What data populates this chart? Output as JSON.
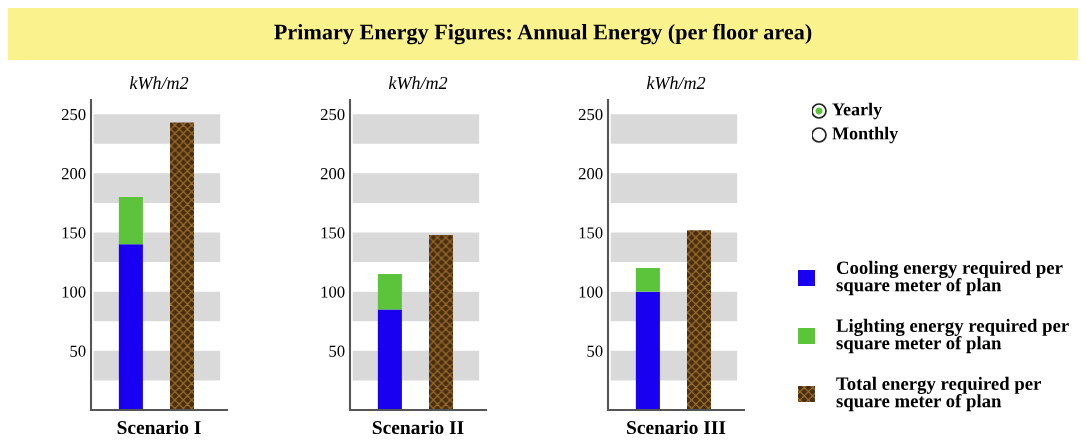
{
  "chart_data": [
    {
      "type": "other",
      "title": "Primary Energy Figures: Annual Energy (per floor area)"
    },
    {
      "type": "bar",
      "ylabel": "kWh/m2",
      "xlabel": "Scenario I",
      "categories": [
        null,
        null
      ],
      "stacked": true,
      "ylim": [
        0,
        262
      ],
      "yticks": [
        50,
        100,
        150,
        200,
        250
      ],
      "grid": false,
      "bands": [
        {
          "axis": "y",
          "from": 25,
          "to": 50,
          "color": "#d9d9d9"
        },
        {
          "axis": "y",
          "from": 75,
          "to": 100,
          "color": "#d9d9d9"
        },
        {
          "axis": "y",
          "from": 125,
          "to": 150,
          "color": "#d9d9d9"
        },
        {
          "axis": "y",
          "from": 175,
          "to": 200,
          "color": "#d9d9d9"
        },
        {
          "axis": "y",
          "from": 225,
          "to": 250,
          "color": "#d9d9d9"
        }
      ],
      "series": [
        {
          "color": "#1a00f0",
          "values": [
            140,
            null
          ]
        },
        {
          "color": "#5cc43a",
          "values": [
            40,
            null
          ]
        },
        {
          "color": "#4a2e12",
          "values": [
            null,
            243
          ]
        }
      ]
    },
    {
      "type": "bar",
      "ylabel": "kWh/m2",
      "xlabel": "Scenario II",
      "categories": [
        null,
        null
      ],
      "stacked": true,
      "ylim": [
        0,
        262
      ],
      "yticks": [
        50,
        100,
        150,
        200,
        250
      ],
      "grid": false,
      "bands": [
        {
          "axis": "y",
          "from": 25,
          "to": 50,
          "color": "#d9d9d9"
        },
        {
          "axis": "y",
          "from": 75,
          "to": 100,
          "color": "#d9d9d9"
        },
        {
          "axis": "y",
          "from": 125,
          "to": 150,
          "color": "#d9d9d9"
        },
        {
          "axis": "y",
          "from": 175,
          "to": 200,
          "color": "#d9d9d9"
        },
        {
          "axis": "y",
          "from": 225,
          "to": 250,
          "color": "#d9d9d9"
        }
      ],
      "series": [
        {
          "color": "#1a00f0",
          "values": [
            85,
            null
          ]
        },
        {
          "color": "#5cc43a",
          "values": [
            30,
            null
          ]
        },
        {
          "color": "#4a2e12",
          "values": [
            null,
            148
          ]
        }
      ]
    },
    {
      "type": "bar",
      "ylabel": "kWh/m2",
      "xlabel": "Scenario III",
      "categories": [
        null,
        null
      ],
      "stacked": true,
      "ylim": [
        0,
        262
      ],
      "yticks": [
        50,
        100,
        150,
        200,
        250
      ],
      "grid": false,
      "legend": "right",
      "bands": [
        {
          "axis": "y",
          "from": 25,
          "to": 50,
          "color": "#d9d9d9"
        },
        {
          "axis": "y",
          "from": 75,
          "to": 100,
          "color": "#d9d9d9"
        },
        {
          "axis": "y",
          "from": 125,
          "to": 150,
          "color": "#d9d9d9"
        },
        {
          "axis": "y",
          "from": 175,
          "to": 200,
          "color": "#d9d9d9"
        },
        {
          "axis": "y",
          "from": 225,
          "to": 250,
          "color": "#d9d9d9"
        }
      ],
      "series": [
        {
          "name": "Cooling energy required per square meter of plan",
          "color": "#1a00f0",
          "values": [
            100,
            null
          ]
        },
        {
          "name": "Lighting energy required per square meter of plan",
          "color": "#5cc43a",
          "values": [
            20,
            null
          ]
        },
        {
          "name": "Total energy required per square meter of plan",
          "color": "#4a2e12",
          "values": [
            null,
            152
          ]
        }
      ]
    },
    {
      "type": "other",
      "annotations": [
        "Yearly",
        "Monthly"
      ]
    }
  ]
}
